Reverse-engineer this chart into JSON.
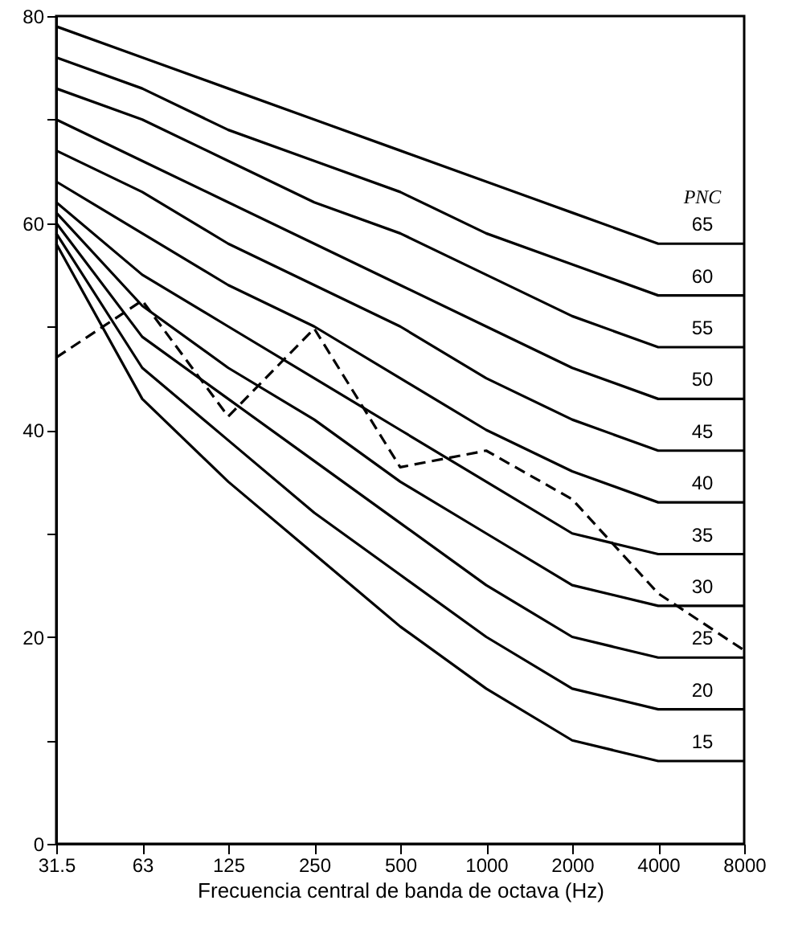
{
  "chart_data": {
    "type": "line",
    "xlabel": "Frecuencia central de banda de octava (Hz)",
    "legend_title": "PNC",
    "categories": [
      "31.5",
      "63",
      "125",
      "250",
      "500",
      "1000",
      "2000",
      "4000",
      "8000"
    ],
    "ylim": [
      0,
      80
    ],
    "yticks": [
      0,
      {
        "value": 10,
        "label": null
      },
      20,
      {
        "value": 30,
        "label": null
      },
      40,
      {
        "value": 50,
        "label": null
      },
      60,
      {
        "value": 70,
        "label": null
      },
      80
    ],
    "grid": false,
    "legend": "right",
    "marker": "none",
    "series": [
      {
        "name": "65",
        "color": "#000000",
        "values": [
          79,
          76,
          73,
          70,
          67,
          64,
          61,
          58,
          58
        ]
      },
      {
        "name": "60",
        "color": "#000000",
        "values": [
          76,
          73,
          69,
          66,
          63,
          59,
          56,
          53,
          53
        ]
      },
      {
        "name": "55",
        "color": "#000000",
        "values": [
          73,
          70,
          66,
          62,
          59,
          55,
          51,
          48,
          48
        ]
      },
      {
        "name": "50",
        "color": "#000000",
        "values": [
          70,
          66,
          62,
          58,
          54,
          50,
          46,
          43,
          43
        ]
      },
      {
        "name": "45",
        "color": "#000000",
        "values": [
          67,
          63,
          58,
          54,
          50,
          45,
          41,
          38,
          38
        ]
      },
      {
        "name": "40",
        "color": "#000000",
        "values": [
          64,
          59,
          54,
          50,
          45,
          40,
          36,
          33,
          33
        ]
      },
      {
        "name": "35",
        "color": "#000000",
        "values": [
          62,
          55,
          50,
          45,
          40,
          35,
          30,
          28,
          28
        ]
      },
      {
        "name": "30",
        "color": "#000000",
        "values": [
          61,
          52,
          46,
          41,
          35,
          30,
          25,
          23,
          23
        ]
      },
      {
        "name": "25",
        "color": "#000000",
        "values": [
          60,
          49,
          43,
          37,
          31,
          25,
          20,
          18,
          18
        ]
      },
      {
        "name": "20",
        "color": "#000000",
        "values": [
          59,
          46,
          39,
          32,
          26,
          20,
          15,
          13,
          13
        ]
      },
      {
        "name": "15",
        "color": "#000000",
        "values": [
          58,
          43,
          35,
          28,
          21,
          15,
          10,
          8,
          8
        ]
      },
      {
        "color": "#000000",
        "line_style": "dashed",
        "values": [
          47,
          52.5,
          41.3,
          49.8,
          36.4,
          38,
          33.3,
          24.2,
          18.7
        ]
      }
    ]
  }
}
